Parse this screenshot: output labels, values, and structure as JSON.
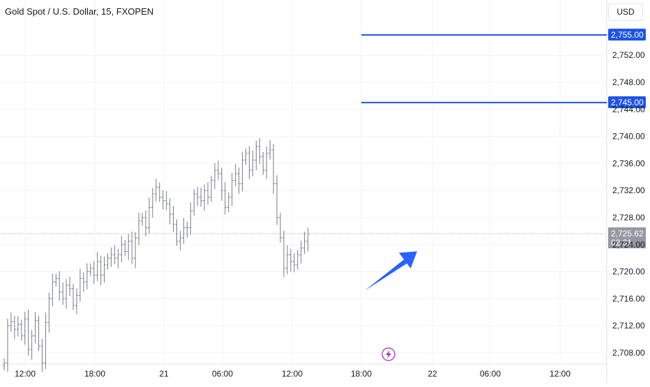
{
  "header": {
    "symbol_title": "Gold Spot / U.S. Dollar, 15, FXOPEN"
  },
  "price_scale": {
    "currency_label": "USD"
  },
  "colors": {
    "level_line": "#1e53e5",
    "arrow": "#2962ff",
    "bar": "#787b86",
    "grid": "#f0f3fa",
    "last_price_bg": "#9598a1",
    "axis_text": "#131722"
  },
  "icons": {
    "replay": "lightning-icon"
  },
  "chart_data": {
    "type": "ohlc",
    "title": "Gold Spot / U.S. Dollar, 15, FXOPEN",
    "interval": "15",
    "y_ticks": [
      "2,708.00",
      "2,712.00",
      "2,716.00",
      "2,720.00",
      "2,724.00",
      "2,728.00",
      "2,732.00",
      "2,736.00",
      "2,740.00",
      "2,744.00",
      "2,748.00",
      "2,752.00"
    ],
    "y_tick_values": [
      2708,
      2712,
      2716,
      2720,
      2724,
      2728,
      2732,
      2736,
      2740,
      2744,
      2748,
      2752
    ],
    "x_ticks": [
      "12:00",
      "18:00",
      "21",
      "06:00",
      "12:00",
      "18:00",
      "22",
      "06:00",
      "12:00"
    ],
    "ylim": [
      2706,
      2756
    ],
    "grid": true,
    "horizontal_levels": [
      {
        "value": 2755.0,
        "label": "2,755.00",
        "start_time_index": 23
      },
      {
        "value": 2745.0,
        "label": "2,745.00",
        "start_time_index": 23
      }
    ],
    "last_price": {
      "value": 2725.62,
      "label": "2,725.62",
      "countdown": "02:31"
    },
    "arrow": {
      "from_value": 2717.2,
      "to_value": 2723.0,
      "direction": "up"
    },
    "bars_close_approx": [
      2706.5,
      2712.0,
      2712.6,
      2711.5,
      2712.2,
      2710.5,
      2713.0,
      2708.5,
      2710.5,
      2712.8,
      2709.0,
      2706.5,
      2712.5,
      2716.0,
      2718.5,
      2719.0,
      2717.0,
      2716.0,
      2718.0,
      2717.5,
      2715.0,
      2716.5,
      2719.0,
      2718.5,
      2720.0,
      2720.5,
      2719.5,
      2721.5,
      2719.5,
      2721.0,
      2722.0,
      2722.5,
      2722.0,
      2722.5,
      2724.0,
      2723.0,
      2724.5,
      2722.0,
      2725.0,
      2727.5,
      2728.0,
      2726.5,
      2729.5,
      2731.5,
      2732.5,
      2731.0,
      2730.5,
      2730.0,
      2728.5,
      2727.0,
      2724.5,
      2725.0,
      2726.5,
      2726.5,
      2729.0,
      2731.5,
      2731.0,
      2730.5,
      2732.0,
      2731.0,
      2733.5,
      2735.0,
      2734.5,
      2732.0,
      2729.5,
      2731.0,
      2733.5,
      2734.5,
      2733.0,
      2736.5,
      2737.5,
      2735.0,
      2736.5,
      2738.5,
      2737.0,
      2735.0,
      2737.5,
      2738.0,
      2733.0,
      2728.0,
      2725.0,
      2720.5,
      2722.5,
      2721.5,
      2721.0,
      2722.5,
      2723.5,
      2724.5,
      2725.6
    ]
  }
}
